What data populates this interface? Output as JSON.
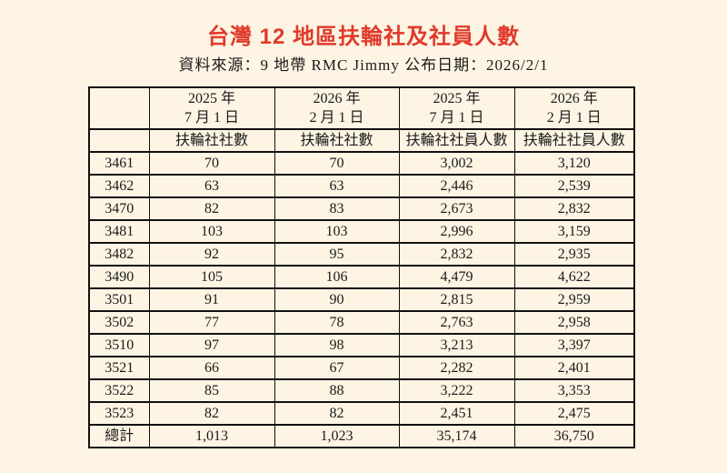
{
  "page": {
    "title": "台灣 12 地區扶輪社及社員人數",
    "source_line": "資料來源：9 地帶 RMC Jimmy  公布日期：2026/2/1"
  },
  "colors": {
    "background": "#FDF4E3",
    "title_red": "#E03A2B",
    "border": "#111111",
    "text": "#1B1B1B"
  },
  "table": {
    "corner_label": "",
    "column_headers": [
      {
        "year": "2025 年",
        "date": "7 月 1 日",
        "measure": "扶輪社社數"
      },
      {
        "year": "2026 年",
        "date": "2 月 1 日",
        "measure": "扶輪社社數"
      },
      {
        "year": "2025 年",
        "date": "7 月 1 日",
        "measure": "扶輪社社員人數"
      },
      {
        "year": "2026 年",
        "date": "2 月 1 日",
        "measure": "扶輪社社員人數"
      }
    ],
    "rows": [
      {
        "district": "3461",
        "values": [
          "70",
          "70",
          "3,002",
          "3,120"
        ]
      },
      {
        "district": "3462",
        "values": [
          "63",
          "63",
          "2,446",
          "2,539"
        ]
      },
      {
        "district": "3470",
        "values": [
          "82",
          "83",
          "2,673",
          "2,832"
        ]
      },
      {
        "district": "3481",
        "values": [
          "103",
          "103",
          "2,996",
          "3,159"
        ]
      },
      {
        "district": "3482",
        "values": [
          "92",
          "95",
          "2,832",
          "2,935"
        ]
      },
      {
        "district": "3490",
        "values": [
          "105",
          "106",
          "4,479",
          "4,622"
        ]
      },
      {
        "district": "3501",
        "values": [
          "91",
          "90",
          "2,815",
          "2,959"
        ]
      },
      {
        "district": "3502",
        "values": [
          "77",
          "78",
          "2,763",
          "2,958"
        ]
      },
      {
        "district": "3510",
        "values": [
          "97",
          "98",
          "3,213",
          "3,397"
        ]
      },
      {
        "district": "3521",
        "values": [
          "66",
          "67",
          "2,282",
          "2,401"
        ]
      },
      {
        "district": "3522",
        "values": [
          "85",
          "88",
          "3,222",
          "3,353"
        ]
      },
      {
        "district": "3523",
        "values": [
          "82",
          "82",
          "2,451",
          "2,475"
        ]
      }
    ],
    "total_row": {
      "label": "總計",
      "values": [
        "1,013",
        "1,023",
        "35,174",
        "36,750"
      ]
    }
  }
}
